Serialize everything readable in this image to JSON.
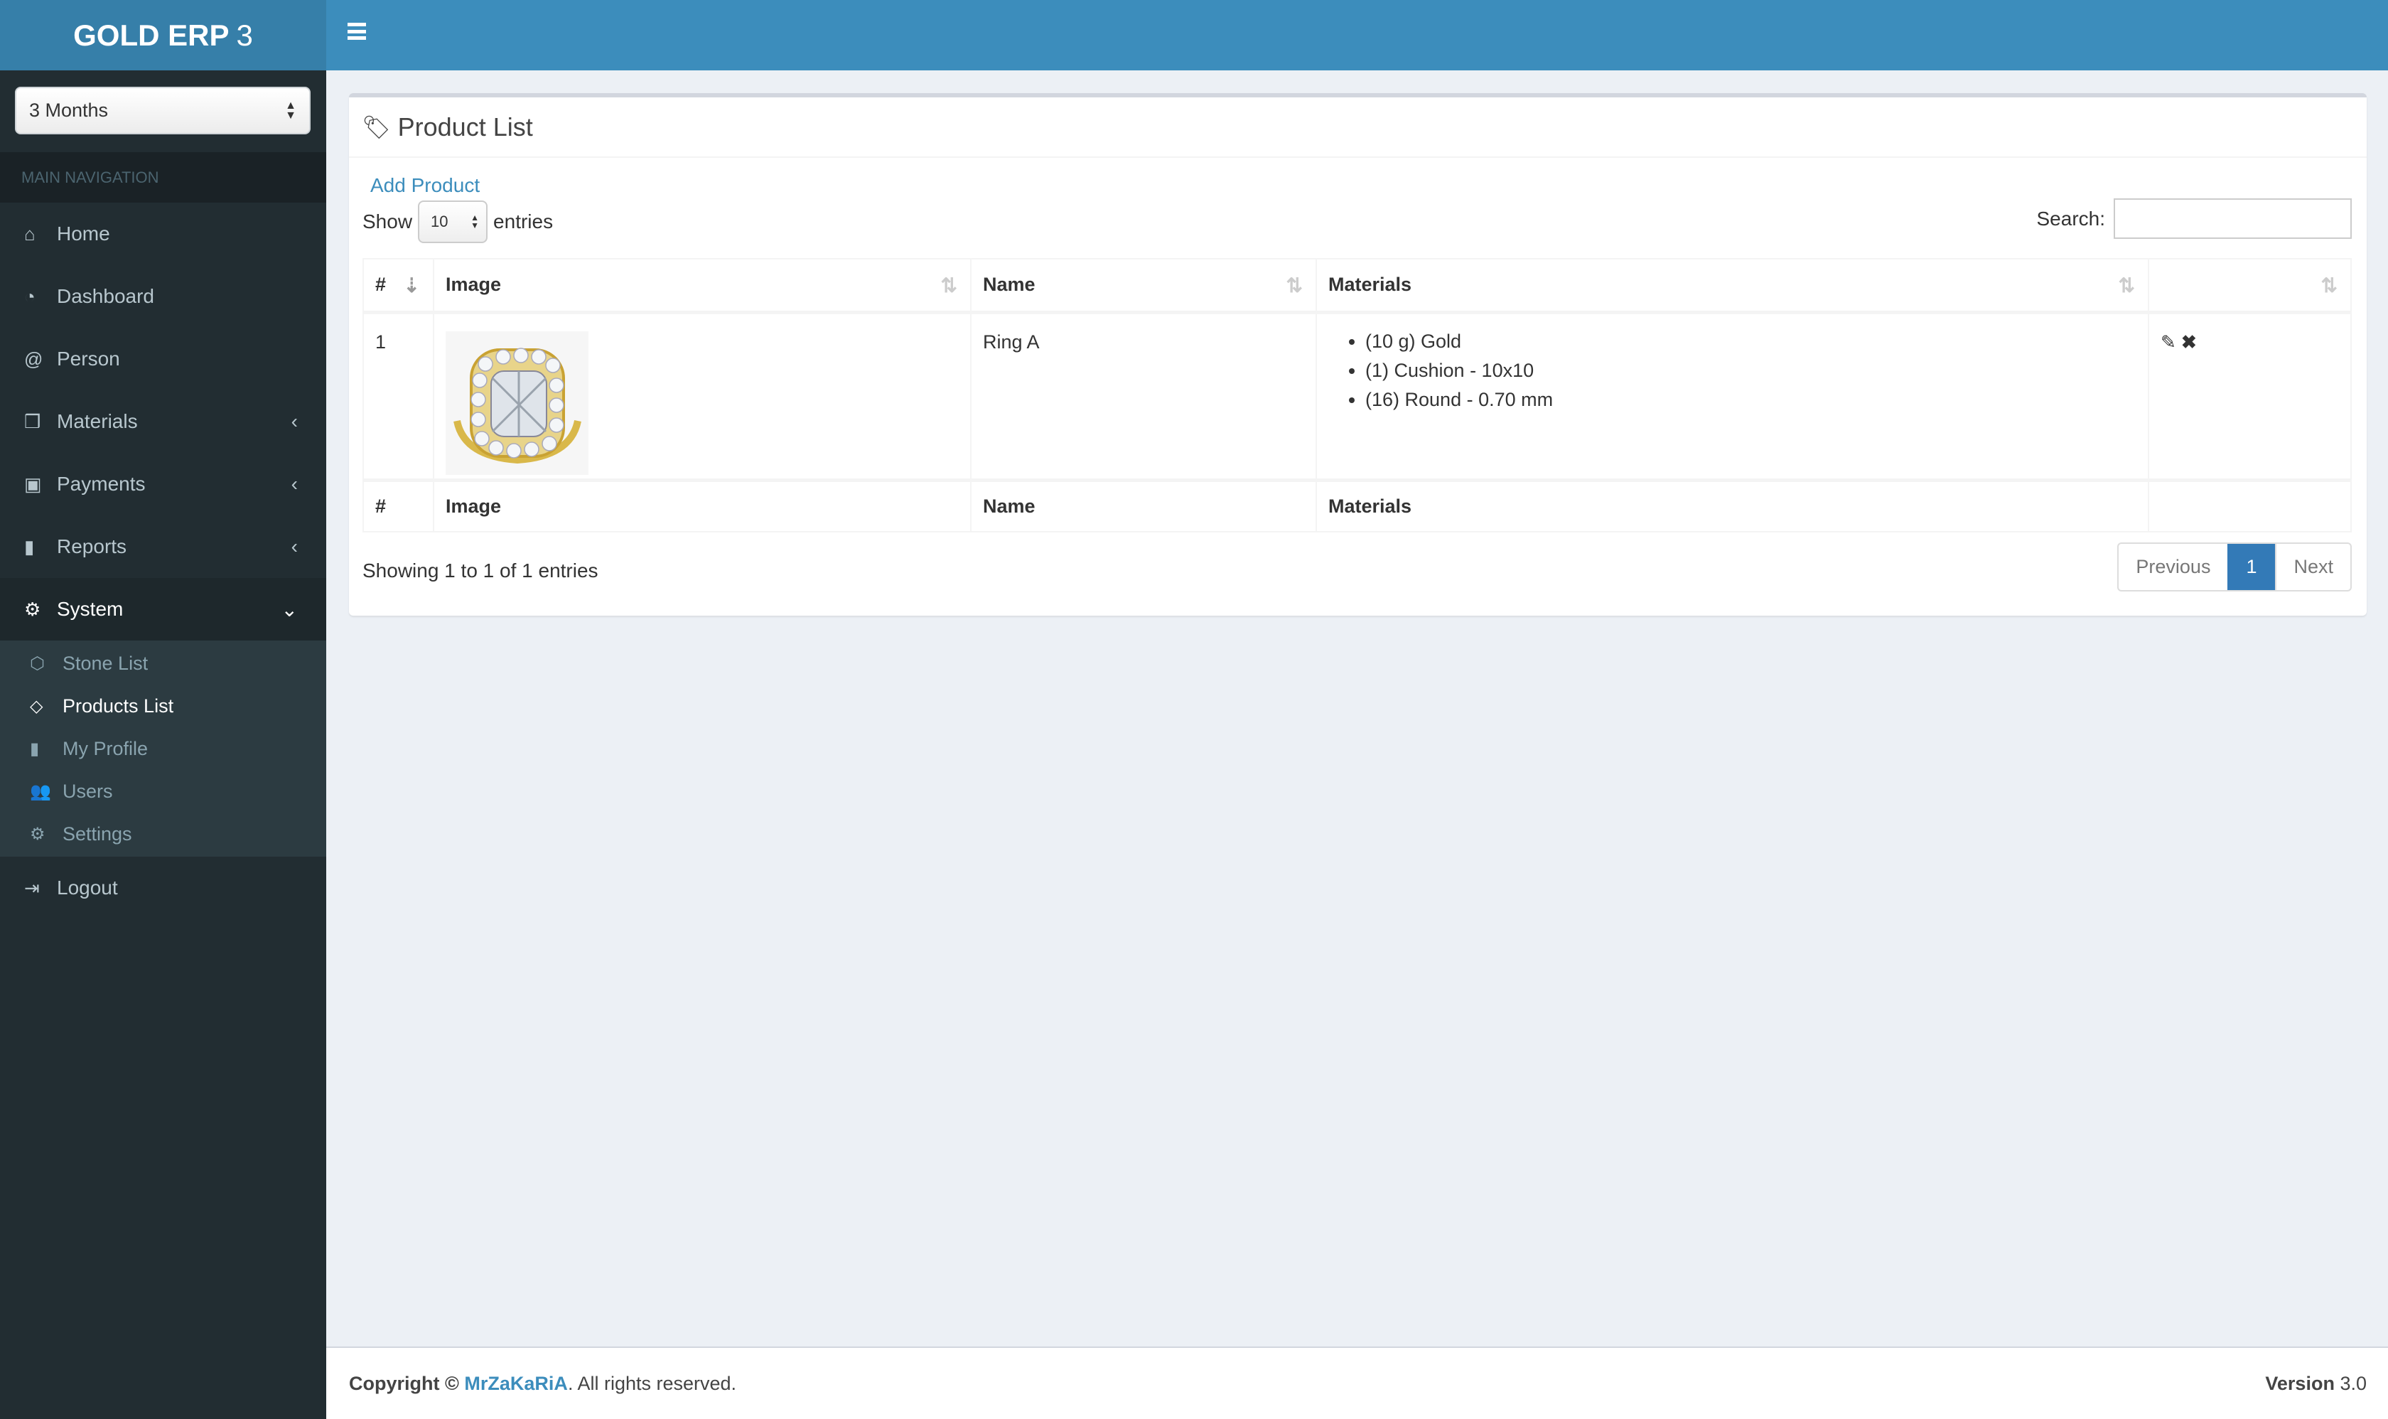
{
  "app": {
    "logo_bold": "GOLD ERP",
    "logo_light": "3"
  },
  "sidebar": {
    "period_select": "3 Months",
    "nav_header": "MAIN NAVIGATION",
    "items": [
      {
        "label": "Home",
        "icon": "home-icon"
      },
      {
        "label": "Dashboard",
        "icon": "dashboard-icon"
      },
      {
        "label": "Person",
        "icon": "at-icon"
      },
      {
        "label": "Materials",
        "icon": "cubes-icon"
      },
      {
        "label": "Payments",
        "icon": "money-icon"
      },
      {
        "label": "Reports",
        "icon": "bookmark-icon"
      },
      {
        "label": "System",
        "icon": "gear-icon"
      }
    ],
    "system_sub": [
      {
        "label": "Stone List",
        "icon": "cube-icon"
      },
      {
        "label": "Products List",
        "icon": "diamond-icon"
      },
      {
        "label": "My Profile",
        "icon": "bookmark-icon"
      },
      {
        "label": "Users",
        "icon": "users-icon"
      },
      {
        "label": "Settings",
        "icon": "gears-icon"
      }
    ],
    "logout": "Logout"
  },
  "box": {
    "title": "Product List",
    "add_product": "Add Product",
    "show_label": "Show",
    "entries_label": "entries",
    "page_length": "10",
    "search_label": "Search:",
    "search_value": "",
    "columns": [
      "#",
      "Image",
      "Name",
      "Materials",
      ""
    ],
    "rows": [
      {
        "num": "1",
        "name": "Ring A",
        "materials": [
          "(10 g) Gold",
          "(1) Cushion - 10x10",
          "(16) Round - 0.70 mm"
        ]
      }
    ],
    "info": "Showing 1 to 1 of 1 entries",
    "pagination": {
      "previous": "Previous",
      "current": "1",
      "next": "Next"
    }
  },
  "footer": {
    "copyright": "Copyright ©",
    "author": "MrZaKaRiA",
    "rights": ". All rights reserved.",
    "version_label": "Version",
    "version": "3.0"
  },
  "colors": {
    "header": "#3c8dbc",
    "logo_bg": "#367fa9",
    "sidebar": "#222d32",
    "accent": "#337ab7"
  }
}
